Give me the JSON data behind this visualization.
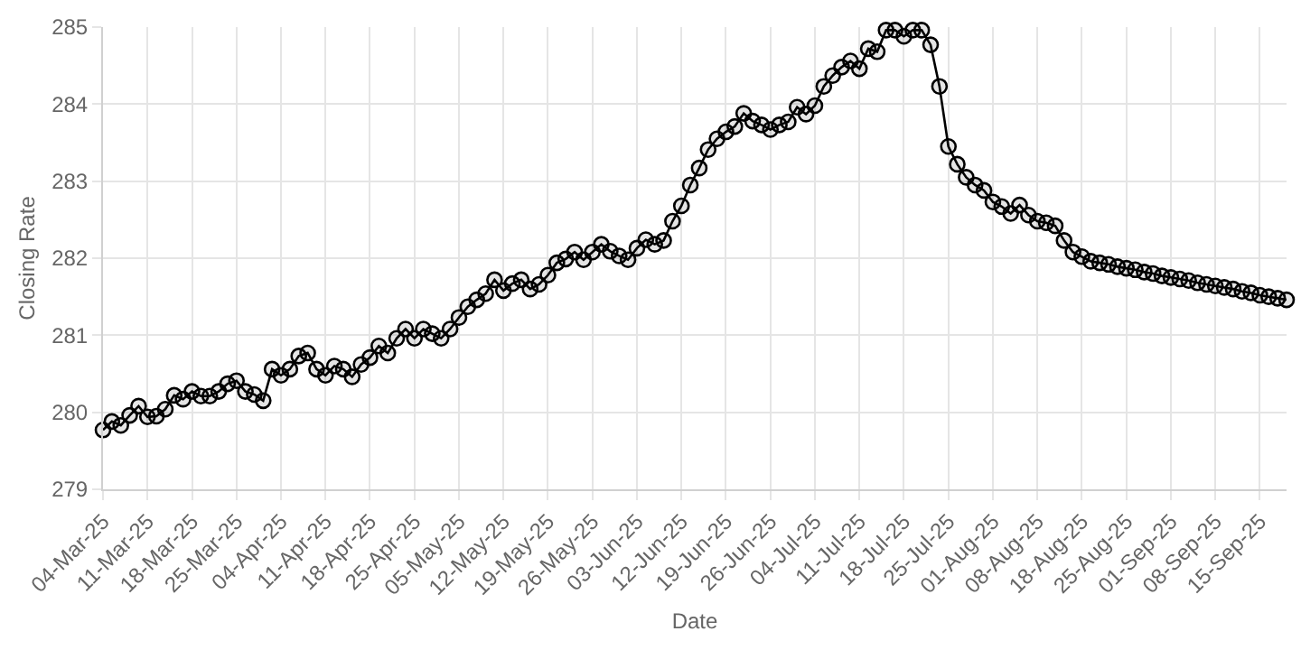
{
  "chart_data": {
    "type": "line",
    "xlabel": "Date",
    "ylabel": "Closing Rate",
    "categories": [
      "04-Mar-25",
      null,
      null,
      null,
      null,
      "11-Mar-25",
      null,
      null,
      null,
      null,
      "18-Mar-25",
      null,
      null,
      null,
      null,
      "25-Mar-25",
      null,
      null,
      null,
      null,
      "04-Apr-25",
      null,
      null,
      null,
      null,
      "11-Apr-25",
      null,
      null,
      null,
      null,
      "18-Apr-25",
      null,
      null,
      null,
      null,
      "25-Apr-25",
      null,
      null,
      null,
      null,
      "05-May-25",
      null,
      null,
      null,
      null,
      "12-May-25",
      null,
      null,
      null,
      null,
      "19-May-25",
      null,
      null,
      null,
      null,
      "26-May-25",
      null,
      null,
      null,
      null,
      "03-Jun-25",
      null,
      null,
      null,
      null,
      "12-Jun-25",
      null,
      null,
      null,
      null,
      "19-Jun-25",
      null,
      null,
      null,
      null,
      "26-Jun-25",
      null,
      null,
      null,
      null,
      "04-Jul-25",
      null,
      null,
      null,
      null,
      "11-Jul-25",
      null,
      null,
      null,
      null,
      "18-Jul-25",
      null,
      null,
      null,
      null,
      "25-Jul-25",
      null,
      null,
      null,
      null,
      "01-Aug-25",
      null,
      null,
      null,
      null,
      "08-Aug-25",
      null,
      null,
      null,
      null,
      "18-Aug-25",
      null,
      null,
      null,
      null,
      "25-Aug-25",
      null,
      null,
      null,
      null,
      "01-Sep-25",
      null,
      null,
      null,
      null,
      "08-Sep-25",
      null,
      null,
      null,
      null,
      "15-Sep-25",
      null,
      null,
      null
    ],
    "series": [
      {
        "color": "#000000",
        "values": [
          279.77,
          279.88,
          279.83,
          279.96,
          280.08,
          279.94,
          279.95,
          280.04,
          280.22,
          280.17,
          280.27,
          280.21,
          280.21,
          280.27,
          280.37,
          280.41,
          280.27,
          280.23,
          280.15,
          280.56,
          280.48,
          280.56,
          280.73,
          280.77,
          280.56,
          280.48,
          280.6,
          280.56,
          280.46,
          280.62,
          280.71,
          280.86,
          280.77,
          280.96,
          281.08,
          280.96,
          281.08,
          281.02,
          280.96,
          281.08,
          281.23,
          281.37,
          281.46,
          281.54,
          281.72,
          281.58,
          281.67,
          281.72,
          281.6,
          281.66,
          281.78,
          281.94,
          281.99,
          282.08,
          281.98,
          282.08,
          282.18,
          282.09,
          282.03,
          281.98,
          282.13,
          282.24,
          282.18,
          282.23,
          282.48,
          282.68,
          282.95,
          283.17,
          283.41,
          283.55,
          283.64,
          283.71,
          283.88,
          283.78,
          283.73,
          283.67,
          283.73,
          283.77,
          283.96,
          283.87,
          283.98,
          284.23,
          284.37,
          284.48,
          284.56,
          284.46,
          284.72,
          284.68,
          284.96,
          284.96,
          284.88,
          284.96,
          284.96,
          284.77,
          284.23,
          283.45,
          283.22,
          283.05,
          282.95,
          282.88,
          282.73,
          282.67,
          282.58,
          282.69,
          282.56,
          282.48,
          282.46,
          282.42,
          282.23,
          282.08,
          282.02,
          281.96,
          281.94,
          281.92,
          281.89,
          281.87,
          281.85,
          281.82,
          281.8,
          281.77,
          281.75,
          281.73,
          281.71,
          281.68,
          281.66,
          281.64,
          281.62,
          281.6,
          281.57,
          281.55,
          281.52,
          281.5,
          281.48,
          281.46
        ]
      }
    ],
    "ylim": [
      279,
      285
    ],
    "yticks": [
      279,
      280,
      281,
      282,
      283,
      284,
      285
    ],
    "grid": true,
    "marker": "circle",
    "line_style": "solid"
  }
}
